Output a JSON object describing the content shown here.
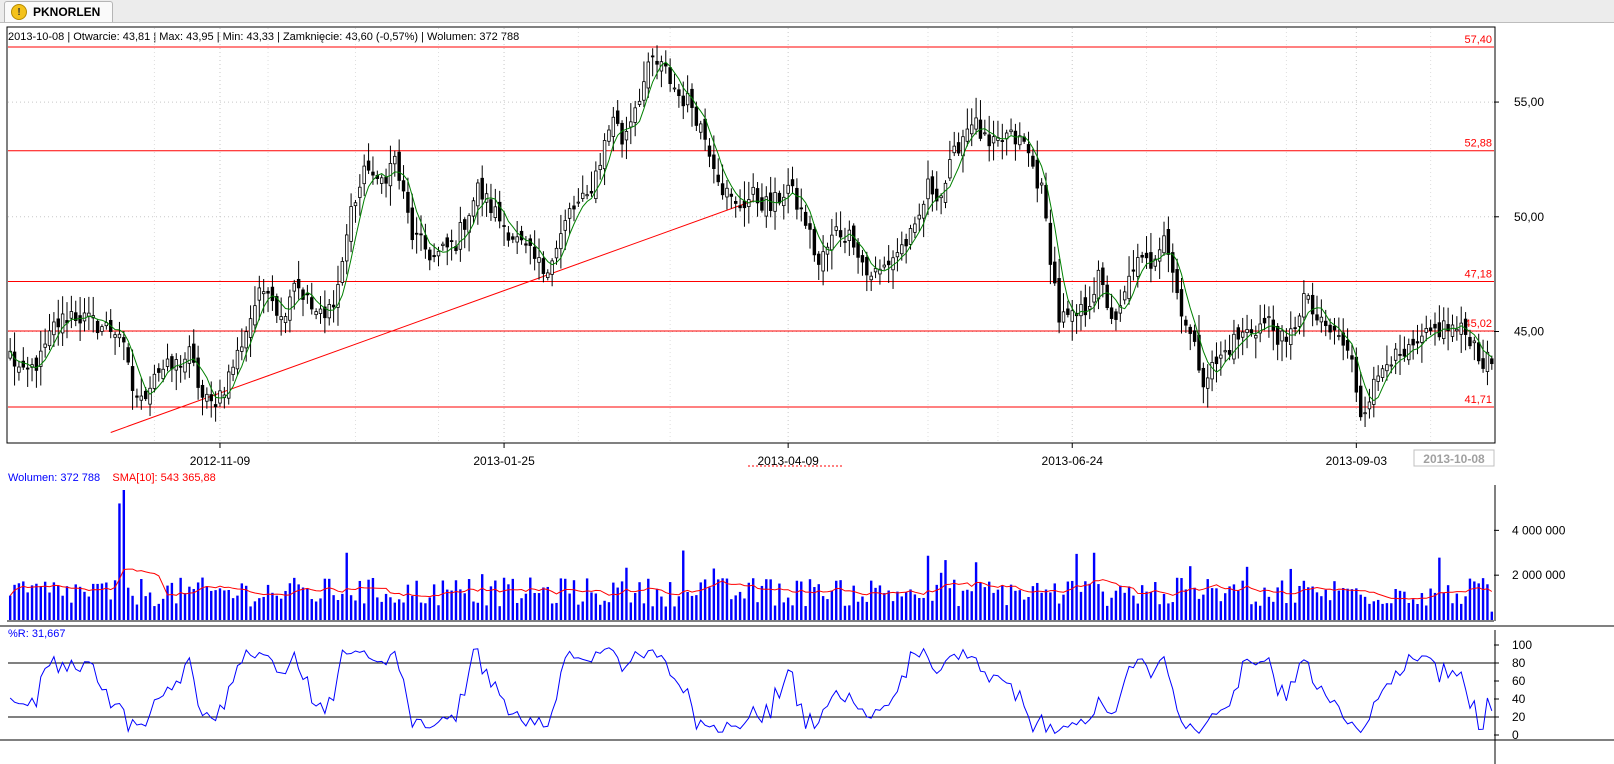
{
  "tab": {
    "label": "PKNORLEN",
    "icon": "warning-icon"
  },
  "header": {
    "info_line": "2013-10-08 | Otwarcie: 43,81 | Max: 43,95 | Min: 43,33 | Zamknięcie: 43,60 (-0,57%)  | Wolumen: 372 788"
  },
  "volume_header": {
    "vol_label": "Wolumen: 372 788",
    "sma_label": "SMA[10]: 543 365,88"
  },
  "wr_header": {
    "label": "%R: 31,667"
  },
  "colors": {
    "up": "#000000",
    "down": "#000000",
    "ma": "#008000",
    "resistance": "#ff0000",
    "volume": "#0000ff",
    "sma": "#ff0000",
    "wr": "#0000ff"
  },
  "chart_data": [
    {
      "type": "candlestick",
      "title": "PKNORLEN",
      "ylim": [
        40.5,
        58.0
      ],
      "yticks": [
        "45,00",
        "50,00",
        "55,00"
      ],
      "ytick_values": [
        45,
        50,
        55
      ],
      "x_ticks": [
        "2012-11-09",
        "2013-01-25",
        "2013-04-09",
        "2013-06-24",
        "2013-09-03",
        "2013-10-08"
      ],
      "x_tick_index": [
        48,
        113,
        178,
        243,
        308,
        339
      ],
      "horizontal_lines": [
        {
          "value": 57.4,
          "label": "57,40"
        },
        {
          "value": 52.88,
          "label": "52,88"
        },
        {
          "value": 47.18,
          "label": "47,18"
        },
        {
          "value": 45.02,
          "label": "45,02"
        },
        {
          "value": 41.71,
          "label": "41,71"
        }
      ],
      "trendline": {
        "from": [
          23,
          40.6
        ],
        "to": [
          170,
          50.7
        ]
      },
      "ma_name": "",
      "n_sessions": 340,
      "close_anchors": [
        [
          0,
          44.0
        ],
        [
          3,
          43.0
        ],
        [
          7,
          43.8
        ],
        [
          10,
          45.2
        ],
        [
          14,
          45.8
        ],
        [
          20,
          45.3
        ],
        [
          25,
          45.0
        ],
        [
          28,
          42.5
        ],
        [
          30,
          41.9
        ],
        [
          33,
          43.3
        ],
        [
          37,
          43.4
        ],
        [
          41,
          44.0
        ],
        [
          44,
          42.1
        ],
        [
          46,
          41.8
        ],
        [
          49,
          42.6
        ],
        [
          52,
          44.0
        ],
        [
          56,
          46.2
        ],
        [
          59,
          47.1
        ],
        [
          62,
          45.5
        ],
        [
          65,
          47.3
        ],
        [
          69,
          46.0
        ],
        [
          72,
          45.5
        ],
        [
          75,
          47.0
        ],
        [
          78,
          50.3
        ],
        [
          82,
          52.3
        ],
        [
          84,
          51.3
        ],
        [
          88,
          52.5
        ],
        [
          92,
          49.2
        ],
        [
          97,
          48.2
        ],
        [
          102,
          48.9
        ],
        [
          107,
          51.2
        ],
        [
          112,
          49.9
        ],
        [
          117,
          48.7
        ],
        [
          122,
          47.7
        ],
        [
          125,
          48.6
        ],
        [
          128,
          50.2
        ],
        [
          132,
          50.8
        ],
        [
          135,
          52.5
        ],
        [
          138,
          54.5
        ],
        [
          140,
          53.3
        ],
        [
          143,
          54.9
        ],
        [
          147,
          56.8
        ],
        [
          150,
          56.3
        ],
        [
          153,
          55.3
        ],
        [
          156,
          54.9
        ],
        [
          160,
          53.0
        ],
        [
          163,
          51.3
        ],
        [
          166,
          50.4
        ],
        [
          170,
          50.9
        ],
        [
          174,
          50.4
        ],
        [
          178,
          51.3
        ],
        [
          182,
          49.8
        ],
        [
          185,
          47.9
        ],
        [
          189,
          49.4
        ],
        [
          193,
          49.1
        ],
        [
          196,
          47.5
        ],
        [
          199,
          47.6
        ],
        [
          203,
          48.5
        ],
        [
          207,
          49.3
        ],
        [
          210,
          51.3
        ],
        [
          213,
          51.0
        ],
        [
          217,
          53.2
        ],
        [
          220,
          54.3
        ],
        [
          224,
          52.9
        ],
        [
          228,
          53.5
        ],
        [
          232,
          53.2
        ],
        [
          236,
          51.1
        ],
        [
          240,
          45.6
        ],
        [
          243,
          45.5
        ],
        [
          246,
          46.0
        ],
        [
          249,
          47.3
        ],
        [
          253,
          45.2
        ],
        [
          257,
          47.9
        ],
        [
          261,
          48.0
        ],
        [
          264,
          49.4
        ],
        [
          267,
          46.7
        ],
        [
          270,
          44.8
        ],
        [
          273,
          43.0
        ],
        [
          276,
          43.6
        ],
        [
          280,
          44.6
        ],
        [
          284,
          45.1
        ],
        [
          288,
          45.4
        ],
        [
          292,
          44.3
        ],
        [
          296,
          46.5
        ],
        [
          300,
          45.2
        ],
        [
          304,
          44.8
        ],
        [
          307,
          43.6
        ],
        [
          309,
          41.5
        ],
        [
          312,
          42.6
        ],
        [
          315,
          44.0
        ],
        [
          318,
          43.7
        ],
        [
          322,
          44.3
        ],
        [
          325,
          44.9
        ],
        [
          328,
          45.2
        ],
        [
          331,
          45.1
        ],
        [
          334,
          44.8
        ],
        [
          337,
          43.7
        ],
        [
          339,
          43.6
        ]
      ]
    },
    {
      "type": "bar",
      "title": "Wolumen",
      "ylim": [
        0,
        5800000
      ],
      "yticks": [
        "2 000 000",
        "4 000 000"
      ],
      "ytick_values": [
        2000000,
        4000000
      ],
      "series": [
        {
          "name": "Wolumen",
          "pattern": "volume bars per session; spikes ≈ 5 800 000 (late Oct 2012), 3 000 000 (Dec 2012), 3 100 000 (Mar 2013), 3 000 000 (Jun 2013)"
        },
        {
          "name": "SMA[10]",
          "pattern": "moving average of volume ≈ 700 000 – 2 000 000"
        }
      ]
    },
    {
      "type": "line",
      "title": "%R",
      "ylim": [
        0,
        100
      ],
      "yticks": [
        "0",
        "20",
        "40",
        "60",
        "80",
        "100"
      ],
      "ytick_values": [
        0,
        20,
        40,
        60,
        80,
        100
      ],
      "reference_lines": [
        20,
        80
      ],
      "series": [
        {
          "name": "%R",
          "pattern": "Williams %R oscillating 0–100"
        }
      ]
    }
  ]
}
